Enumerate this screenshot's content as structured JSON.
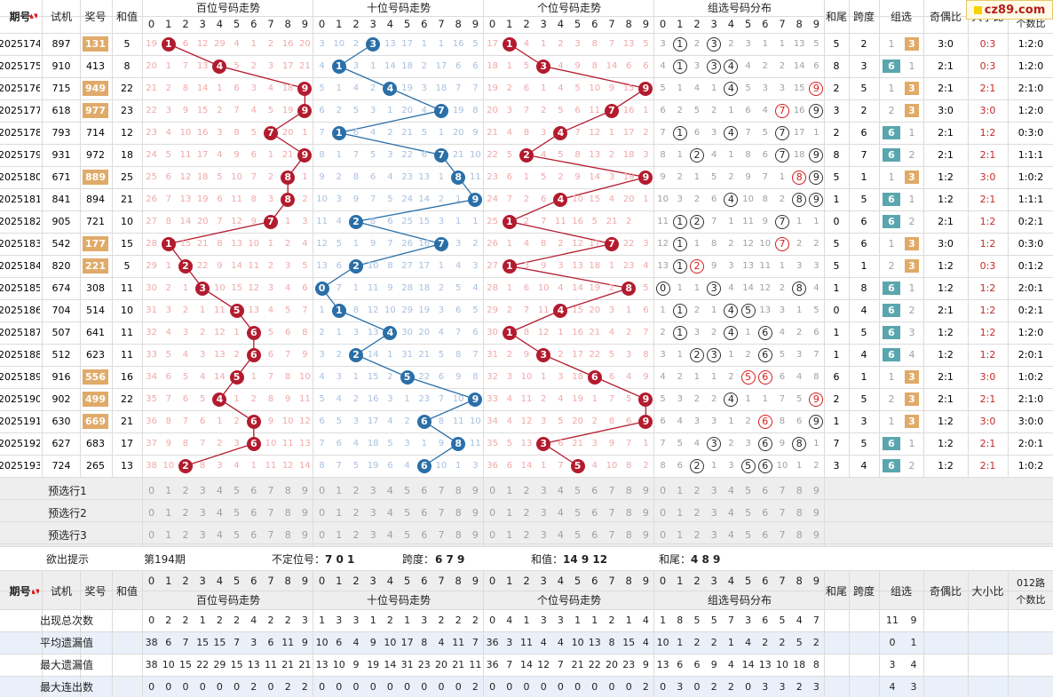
{
  "header": {
    "qihao": "期号",
    "shiji": "试机",
    "jianghao": "奖号",
    "hezhi": "和值",
    "sections": [
      "百位号码走势",
      "十位号码走势",
      "个位号码走势",
      "组选号码分布"
    ],
    "hewei": "和尾",
    "kuadu": "跨度",
    "zuxuan": "组选",
    "jiou": "奇偶比",
    "daxiao": "大小比",
    "lu012": [
      "012路",
      "个数比"
    ],
    "digits": [
      "0",
      "1",
      "2",
      "3",
      "4",
      "5",
      "6",
      "7",
      "8",
      "9"
    ]
  },
  "logo": "cz89.com",
  "rows": [
    {
      "qi": "2025174",
      "shi": "897",
      "jiang": "131",
      "jhl": true,
      "he": "5",
      "b": "19 1 6 12 29 4 1 2 16 20",
      "s": "3 10 2 3 13 17 1 1 16 5",
      "g": "17 1 4 1 2 3 8 7 13 5",
      "z": "3 1 2 3 2 3 1 1 13 5",
      "zm": [
        1,
        3
      ],
      "zr": [
        1
      ],
      "hw": "5",
      "kd": "2",
      "zx6": "1",
      "zx3": "3",
      "zt": "3",
      "jo": "3:0",
      "dx": "0:3",
      "lu": "1:2:0"
    },
    {
      "qi": "2025175",
      "shi": "910",
      "jiang": "413",
      "jhl": false,
      "he": "8",
      "b": "20 1 7 13 4 5 2 3 17 21",
      "s": "4 1 3 1 14 18 2 17 6 6",
      "g": "18 1 5 3 4 9 8 14 6 6",
      "z": "4 1 3 3 4 4 2 2 14 6",
      "zm": [
        1,
        3,
        4
      ],
      "zr": [],
      "hw": "8",
      "kd": "3",
      "zx6": "6",
      "zx3": "1",
      "zt": "6",
      "jo": "2:1",
      "dx": "0:3",
      "lu": "1:2:0"
    },
    {
      "qi": "2025176",
      "shi": "715",
      "jiang": "949",
      "jhl": true,
      "he": "22",
      "b": "21 2 8 14 1 6 3 4 18 9",
      "s": "5 1 4 2 4 19 3 18 7 7",
      "g": "19 2 6 1 4 5 10 9 15 9",
      "z": "5 1 4 1 4 5 3 3 15 9",
      "zm": [
        4
      ],
      "zr": [
        9
      ],
      "hw": "2",
      "kd": "5",
      "zx6": "1",
      "zx3": "3",
      "zt": "3",
      "jo": "2:1",
      "dx": "2:1",
      "lu": "2:1:0"
    },
    {
      "qi": "2025177",
      "shi": "618",
      "jiang": "977",
      "jhl": true,
      "he": "23",
      "b": "22 3 9 15 2 7 4 5 19 9",
      "s": "6 2 5 3 1 20 4 7 19 8",
      "g": "20 3 7 2 5 6 11 7 16 1",
      "z": "6 2 5 2 1 6 4 7 16 9",
      "zm": [
        9
      ],
      "zr": [
        7
      ],
      "hw": "3",
      "kd": "2",
      "zx6": "2",
      "zx3": "3",
      "zt": "3",
      "jo": "3:0",
      "dx": "3:0",
      "lu": "1:2:0"
    },
    {
      "qi": "2025178",
      "shi": "793",
      "jiang": "714",
      "jhl": false,
      "he": "12",
      "b": "23 4 10 16 3 8 5 7 20 1",
      "s": "7 1 6 4 2 21 5 1 20 9",
      "g": "21 4 8 3 4 7 12 1 17 2",
      "z": "7 1 6 3 4 7 5 7 17 1",
      "zm": [
        1,
        4,
        7
      ],
      "zr": [],
      "hw": "2",
      "kd": "6",
      "zx6": "6",
      "zx3": "1",
      "zt": "6",
      "jo": "2:1",
      "dx": "1:2",
      "lu": "0:3:0"
    },
    {
      "qi": "2025179",
      "shi": "931",
      "jiang": "972",
      "jhl": false,
      "he": "18",
      "b": "24 5 11 17 4 9 6 1 21 9",
      "s": "8 1 7 5 3 22 6 7 21 10",
      "g": "22 5 2 4 5 8 13 2 18 3",
      "z": "8 1 2 4 1 8 6 7 18 9",
      "zm": [
        2,
        7,
        9
      ],
      "zr": [],
      "hw": "8",
      "kd": "7",
      "zx6": "6",
      "zx3": "2",
      "zt": "6",
      "jo": "2:1",
      "dx": "2:1",
      "lu": "1:1:1"
    },
    {
      "qi": "2025180",
      "shi": "671",
      "jiang": "889",
      "jhl": true,
      "he": "25",
      "b": "25 6 12 18 5 10 7 2 8 1",
      "s": "9 2 8 6 4 23 13 1 8 11",
      "g": "23 6 1 5 2 9 14 3 19 9",
      "z": "9 2 1 5 2 9 7 1 8 9",
      "zm": [
        9
      ],
      "zr": [
        8
      ],
      "hw": "5",
      "kd": "1",
      "zx6": "1",
      "zx3": "3",
      "zt": "3",
      "jo": "1:2",
      "dx": "3:0",
      "lu": "1:0:2"
    },
    {
      "qi": "2025181",
      "shi": "841",
      "jiang": "894",
      "jhl": false,
      "he": "21",
      "b": "26 7 13 19 6 11 8 3 8 2",
      "s": "10 3 9 7 5 24 14 2 1 9",
      "g": "24 7 2 6 4 10 15 4 20 1",
      "z": "10 3 2 6 4 10 8 2 8 9",
      "zm": [
        4,
        8,
        9
      ],
      "zr": [],
      "hw": "1",
      "kd": "5",
      "zx6": "6",
      "zx3": "1",
      "zt": "6",
      "jo": "1:2",
      "dx": "2:1",
      "lu": "1:1:1"
    },
    {
      "qi": "2025182",
      "shi": "905",
      "jiang": "721",
      "jhl": false,
      "he": "10",
      "b": "27 8 14 20 7 12 9 7 1 3",
      "s": "11 4 2 8 6 25 15 3 1 1",
      "g": "25 1 2 7 11 16 5 21 2",
      "z": "11 1 2 7 1 11 9 7 1 1",
      "zm": [
        1,
        2,
        7
      ],
      "zr": [],
      "hw": "0",
      "kd": "6",
      "zx6": "6",
      "zx3": "2",
      "zt": "6",
      "jo": "2:1",
      "dx": "1:2",
      "lu": "0:2:1"
    },
    {
      "qi": "2025183",
      "shi": "542",
      "jiang": "177",
      "jhl": true,
      "he": "15",
      "b": "28 1 15 21 8 13 10 1 2 4",
      "s": "12 5 1 9 7 26 16 7 3 2",
      "g": "26 1 4 8 2 12 17 7 22 3",
      "z": "12 1 1 8 2 12 10 7 2 2",
      "zm": [
        1
      ],
      "zr": [
        7
      ],
      "hw": "5",
      "kd": "6",
      "zx6": "1",
      "zx3": "3",
      "zt": "3",
      "jo": "3:0",
      "dx": "1:2",
      "lu": "0:3:0"
    },
    {
      "qi": "2025184",
      "shi": "820",
      "jiang": "221",
      "jhl": true,
      "he": "5",
      "b": "29 1 2 22 9 14 11 2 3 5",
      "s": "13 6 2 10 8 27 17 1 4 3",
      "g": "27 1 3 9 3 13 18 1 23 4",
      "z": "13 1 2 9 3 13 11 1 3 3",
      "zm": [
        1
      ],
      "zr": [
        2
      ],
      "hw": "5",
      "kd": "1",
      "zx6": "2",
      "zx3": "3",
      "zt": "3",
      "jo": "1:2",
      "dx": "0:3",
      "lu": "0:1:2"
    },
    {
      "qi": "2025185",
      "shi": "674",
      "jiang": "308",
      "jhl": false,
      "he": "11",
      "b": "30 2 1 3 10 15 12 3 4 6",
      "s": "0 7 1 11 9 28 18 2 5 4",
      "g": "28 1 6 10 4 14 19 2 8 5",
      "z": "0 1 1 3 4 14 12 2 8 4",
      "zm": [
        0,
        3,
        8
      ],
      "zr": [],
      "hw": "1",
      "kd": "8",
      "zx6": "6",
      "zx3": "1",
      "zt": "6",
      "jo": "1:2",
      "dx": "1:2",
      "lu": "2:0:1"
    },
    {
      "qi": "2025186",
      "shi": "704",
      "jiang": "514",
      "jhl": false,
      "he": "10",
      "b": "31 3 2 1 11 5 13 4 5 7",
      "s": "1 1 8 12 10 29 19 3 6 5",
      "g": "29 2 7 11 4 15 20 3 1 6",
      "z": "1 1 2 1 4 5 13 3 1 5",
      "zm": [
        1,
        4,
        5
      ],
      "zr": [],
      "hw": "0",
      "kd": "4",
      "zx6": "6",
      "zx3": "2",
      "zt": "6",
      "jo": "2:1",
      "dx": "1:2",
      "lu": "0:2:1"
    },
    {
      "qi": "2025187",
      "shi": "507",
      "jiang": "641",
      "jhl": false,
      "he": "11",
      "b": "32 4 3 2 12 1 6 5 6 8",
      "s": "2 1 3 13 4 30 20 4 7 6",
      "g": "30 1 8 12 1 16 21 4 2 7",
      "z": "2 1 3 2 4 1 6 4 2 6",
      "zm": [
        1,
        4,
        6
      ],
      "zr": [],
      "hw": "1",
      "kd": "5",
      "zx6": "6",
      "zx3": "3",
      "zt": "6",
      "jo": "1:2",
      "dx": "1:2",
      "lu": "1:2:0"
    },
    {
      "qi": "2025188",
      "shi": "512",
      "jiang": "623",
      "jhl": false,
      "he": "11",
      "b": "33 5 4 3 13 2 6 6 7 9",
      "s": "3 2 2 14 1 31 21 5 8 7",
      "g": "31 2 9 3 2 17 22 5 3 8",
      "z": "3 1 2 3 1 2 6 5 3 7",
      "zm": [
        2,
        3,
        6
      ],
      "zr": [],
      "hw": "1",
      "kd": "4",
      "zx6": "6",
      "zx3": "4",
      "zt": "6",
      "jo": "1:2",
      "dx": "1:2",
      "lu": "2:0:1"
    },
    {
      "qi": "2025189",
      "shi": "916",
      "jiang": "556",
      "jhl": true,
      "he": "16",
      "b": "34 6 5 4 14 5 1 7 8 10",
      "s": "4 3 1 15 2 5 22 6 9 8",
      "g": "32 3 10 1 3 18 6 6 4 9",
      "z": "4 2 1 1 2 5 6 6 4 8",
      "zm": [],
      "zr": [
        5,
        6
      ],
      "hw": "6",
      "kd": "1",
      "zx6": "1",
      "zx3": "3",
      "zt": "3",
      "jo": "2:1",
      "dx": "3:0",
      "lu": "1:0:2"
    },
    {
      "qi": "2025190",
      "shi": "902",
      "jiang": "499",
      "jhl": true,
      "he": "22",
      "b": "35 7 6 5 4 1 2 8 9 11",
      "s": "5 4 2 16 3 1 23 7 10 9",
      "g": "33 4 11 2 4 19 1 7 5 9",
      "z": "5 3 2 2 4 1 1 7 5 9",
      "zm": [
        4
      ],
      "zr": [
        9
      ],
      "hw": "2",
      "kd": "5",
      "zx6": "2",
      "zx3": "3",
      "zt": "3",
      "jo": "2:1",
      "dx": "2:1",
      "lu": "2:1:0"
    },
    {
      "qi": "2025191",
      "shi": "630",
      "jiang": "669",
      "jhl": true,
      "he": "21",
      "b": "36 8 7 6 1 2 6 9 10 12",
      "s": "6 5 3 17 4 2 6 8 11 10",
      "g": "34 4 12 3 5 20 2 8 6 9",
      "z": "6 4 3 3 1 2 6 8 6 9",
      "zm": [
        9
      ],
      "zr": [
        6
      ],
      "hw": "1",
      "kd": "3",
      "zx6": "1",
      "zx3": "3",
      "zt": "3",
      "jo": "1:2",
      "dx": "3:0",
      "lu": "3:0:0"
    },
    {
      "qi": "2025192",
      "shi": "627",
      "jiang": "683",
      "jhl": false,
      "he": "17",
      "b": "37 9 8 7 2 3 6 10 11 13",
      "s": "7 6 4 18 5 3 1 9 8 11",
      "g": "35 5 13 3 6 21 3 9 7 1",
      "z": "7 5 4 3 2 3 6 9 8 1",
      "zm": [
        3,
        6,
        8
      ],
      "zr": [],
      "hw": "7",
      "kd": "5",
      "zx6": "6",
      "zx3": "1",
      "zt": "6",
      "jo": "1:2",
      "dx": "2:1",
      "lu": "2:0:1"
    },
    {
      "qi": "2025193",
      "shi": "724",
      "jiang": "265",
      "jhl": false,
      "he": "13",
      "b": "38 10 2 8 3 4 1 11 12 14",
      "s": "8 7 5 19 6 4 6 10 1 3",
      "g": "36 6 14 1 7 5 4 10 8 2",
      "z": "8 6 2 1 3 5 6 10 1 2",
      "zm": [
        2,
        5,
        6
      ],
      "zr": [],
      "hw": "3",
      "kd": "4",
      "zx6": "6",
      "zx3": "2",
      "zt": "6",
      "jo": "1:2",
      "dx": "2:1",
      "lu": "1:0:2"
    }
  ],
  "winners": {
    "b": [
      1,
      4,
      9,
      9,
      7,
      9,
      8,
      8,
      7,
      1,
      2,
      3,
      5,
      6,
      6,
      5,
      4,
      6,
      6,
      2
    ],
    "s": [
      3,
      1,
      4,
      7,
      1,
      7,
      8,
      9,
      2,
      7,
      2,
      0,
      1,
      4,
      2,
      5,
      9,
      6,
      8,
      6
    ],
    "g": [
      1,
      3,
      9,
      7,
      4,
      2,
      9,
      4,
      1,
      7,
      1,
      8,
      4,
      1,
      3,
      6,
      9,
      9,
      3,
      5
    ]
  },
  "pre_rows": [
    "预选行1",
    "预选行2",
    "预选行3"
  ],
  "hint": {
    "label": "欲出提示",
    "period": "第194期",
    "bdw_label": "不定位号：",
    "bdw": "7 0 1",
    "kd_label": "跨度：",
    "kd": "6 7 9",
    "hz_label": "和值：",
    "hz": "14 9 12",
    "hw_label": "和尾：",
    "hw": "4 8 9"
  },
  "stats": [
    {
      "label": "出现总次数",
      "b": "0 2 2 1 2 2 4 2 2 3",
      "s": "1 3 3 1 2 1 3 2 2 2",
      "g": "0 4 1 3 3 1 1 2 1 4",
      "z": "1 8 5 5 7 3 6 5 4 7",
      "zx6": "11",
      "zx3": "9"
    },
    {
      "label": "平均遗漏值",
      "b": "38 6 7 15 15 7 3 6 11 9",
      "s": "10 6 4 9 10 17 8 4 11 7",
      "g": "36 3 11 4 4 10 13 8 15 4",
      "z": "10 1 2 2 1 4 2 2 5 2",
      "zx6": "0",
      "zx3": "1"
    },
    {
      "label": "最大遗漏值",
      "b": "38 10 15 22 29 15 13 11 21 21",
      "s": "13 10 9 19 14 31 23 20 21 11",
      "g": "36 7 14 12 7 21 22 20 23 9",
      "z": "13 6 6 9 4 14 13 10 18 8",
      "zx6": "3",
      "zx3": "4"
    },
    {
      "label": "最大连出数",
      "b": "0 0 0 0 0 0 2 0 2 2",
      "s": "0 0 0 0 0 0 0 0 0 2",
      "g": "0 0 0 0 0 0 0 0 0 2",
      "z": "0 3 0 2 2 0 3 3 2 3",
      "zx6": "4",
      "zx3": "3"
    }
  ],
  "colors": {
    "red": "#b31b2e",
    "blue": "#2b6fa8",
    "orange": "#e0aa68",
    "teal": "#5aa6ae",
    "grayrow": "#eeeeee",
    "bluerow": "#e9f0f9"
  }
}
